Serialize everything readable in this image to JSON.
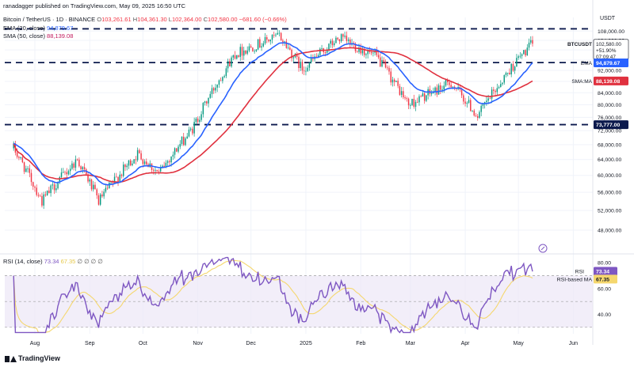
{
  "header": {
    "publisher": "ranadagger published on TradingView.com, May 09, 2025 16:50 UTC",
    "symbol_line": "Bitcoin / TetherUS · 1D · BINANCE",
    "ohlc": {
      "o_label": "O",
      "o": "103,261.61",
      "h_label": "H",
      "h": "104,361.30",
      "l_label": "L",
      "l": "102,364.00",
      "c_label": "C",
      "c": "102,580.00",
      "change": "−681.60 (−0.66%)"
    },
    "ema_label": "EMA (20, close)",
    "ema_value": "94,879.67",
    "sma_label": "SMA (50, close)",
    "sma_value": "88,139.08",
    "rsi_label": "RSI (14, close)",
    "rsi_value": "73.34",
    "rsi_ma_value": "67.35",
    "rsi_extra": "∅ ∅ ∅ ∅",
    "currency": "USDT"
  },
  "footer": {
    "brand": "TradingView"
  },
  "colors": {
    "up": "#089981",
    "down": "#f23645",
    "ema": "#2962ff",
    "sma": "#e0313f",
    "rsi": "#7e57c2",
    "rsi_ma": "#f5d76e",
    "level": "#0c1a4d",
    "grid": "#f0f3fa"
  },
  "chart_data": [
    {
      "type": "candlestick",
      "title": "Bitcoin / TetherUS · 1D · BINANCE",
      "ylabel": "USDT",
      "scale": "log",
      "ylim": [
        44000,
        112000
      ],
      "x_ticks": [
        "Aug",
        "Sep",
        "Oct",
        "Nov",
        "Dec",
        "2025",
        "Feb",
        "Mar",
        "Apr",
        "May",
        "Jun"
      ],
      "y_ticks": [
        "48,000.00",
        "52,000.00",
        "56,000.00",
        "60,000.00",
        "64,000.00",
        "68,000.00",
        "72,000.00",
        "76,000.00",
        "80,000.00",
        "84,000.00",
        "88,000.00",
        "92,000.00",
        "96,000.00",
        "100,000.00",
        "104,000.00",
        "108,000.00"
      ],
      "key_prices": [
        {
          "date": "2024-07-20",
          "close": 67000
        },
        {
          "date": "2024-08-05",
          "close": 54000
        },
        {
          "date": "2024-08-25",
          "close": 64000
        },
        {
          "date": "2024-09-06",
          "close": 54000
        },
        {
          "date": "2024-09-28",
          "close": 65500
        },
        {
          "date": "2024-10-10",
          "close": 60500
        },
        {
          "date": "2024-10-29",
          "close": 72500
        },
        {
          "date": "2024-11-22",
          "close": 98500
        },
        {
          "date": "2024-12-17",
          "close": 106000
        },
        {
          "date": "2024-12-30",
          "close": 92500
        },
        {
          "date": "2025-01-20",
          "close": 105000
        },
        {
          "date": "2025-02-10",
          "close": 97000
        },
        {
          "date": "2025-02-28",
          "close": 80000
        },
        {
          "date": "2025-03-24",
          "close": 87500
        },
        {
          "date": "2025-04-08",
          "close": 76300
        },
        {
          "date": "2025-05-01",
          "close": 96500
        },
        {
          "date": "2025-05-09",
          "close": 102580
        }
      ],
      "ema20_last": 94879.67,
      "sma50_last": 88139.08,
      "levels": [
        {
          "label": "95,000.00",
          "value": 95000
        },
        {
          "label": "73,777.00",
          "value": 73777
        },
        {
          "label": "",
          "value": 109000
        }
      ],
      "price_badges": [
        {
          "label": "BTCUSDT",
          "value": "102,580.00",
          "sub": "+51.90%",
          "time": "07:09:47"
        },
        {
          "label": "EMA",
          "value": "94,879.67"
        },
        {
          "label": "SMA:MA",
          "value": "88,139.08"
        }
      ]
    },
    {
      "type": "line",
      "title": "RSI (14, close)",
      "ylim": [
        25,
        85
      ],
      "y_ticks": [
        "80.00",
        "60.00",
        "40.00"
      ],
      "band": [
        30,
        70
      ],
      "series": [
        {
          "name": "RSI",
          "last": 73.34
        },
        {
          "name": "RSI-based MA",
          "last": 67.35
        }
      ]
    }
  ]
}
